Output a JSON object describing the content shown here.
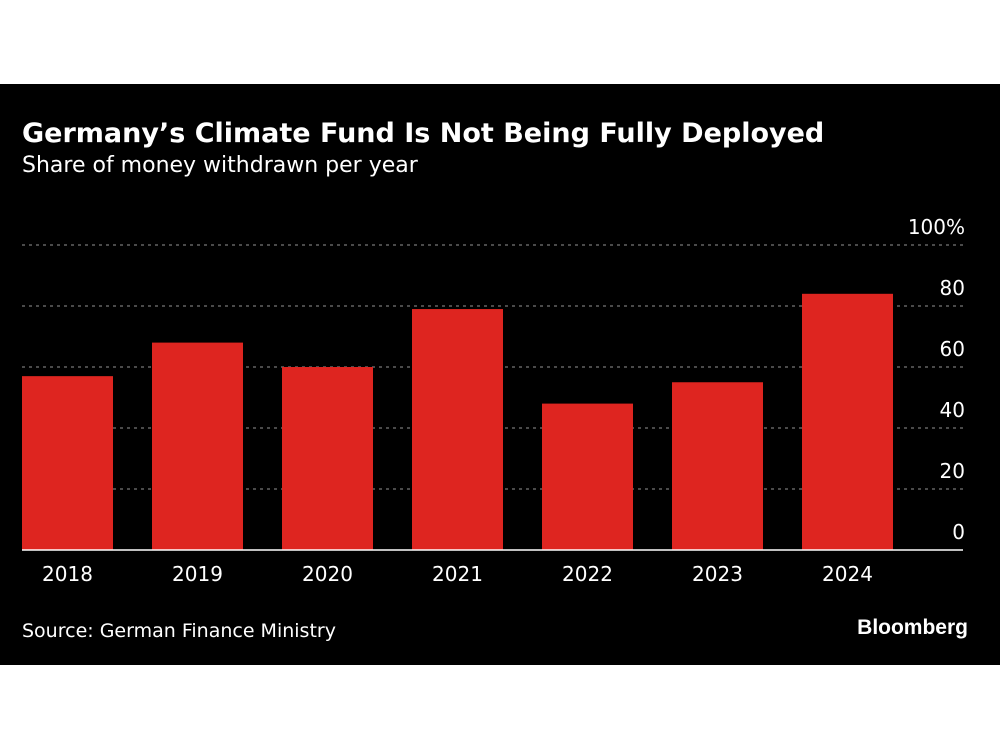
{
  "title": "Germany’s Climate Fund Is Not Being Fully Deployed",
  "subtitle": "Share of money withdrawn per year",
  "source": "Source: German Finance Ministry",
  "brand": "Bloomberg",
  "colors": {
    "background": "#000000",
    "bar": "#de2520",
    "text": "#ffffff",
    "grid": "#777777"
  },
  "chart_data": {
    "type": "bar",
    "categories": [
      "2018",
      "2019",
      "2020",
      "2021",
      "2022",
      "2023",
      "2024"
    ],
    "values": [
      57,
      68,
      60,
      79,
      48,
      55,
      84
    ],
    "ylim": [
      0,
      100
    ],
    "yticks": [
      0,
      20,
      40,
      60,
      80,
      100
    ],
    "ytick_labels": [
      "0",
      "20",
      "40",
      "60",
      "80",
      "100%"
    ],
    "grid": true,
    "grid_style": "dotted",
    "y_axis_side": "right",
    "legend": "none"
  }
}
